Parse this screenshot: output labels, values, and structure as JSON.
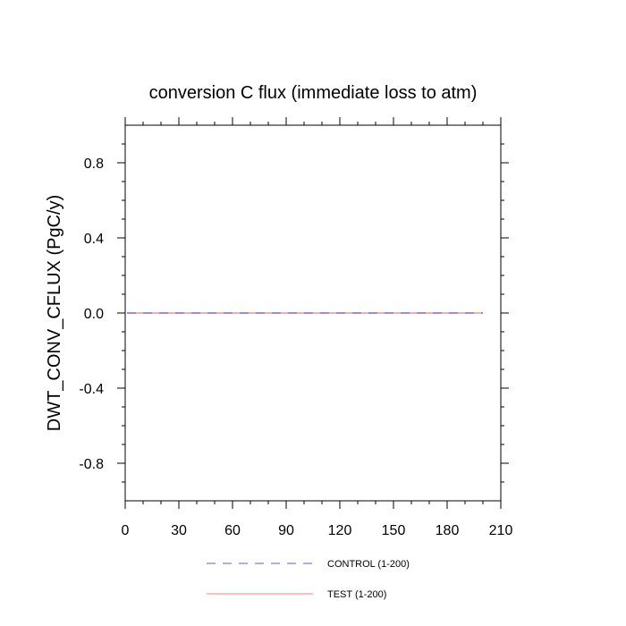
{
  "chart_data": {
    "type": "line",
    "title": "conversion C flux (immediate loss to atm)",
    "ylabel": "DWT_CONV_CFLUX  (PgC/y)",
    "xlabel": "",
    "xlim": [
      0,
      210
    ],
    "ylim": [
      -1.0,
      1.0
    ],
    "x_ticks": [
      0,
      30,
      60,
      90,
      120,
      150,
      180,
      210
    ],
    "x_tick_labels": [
      "0",
      "30",
      "60",
      "90",
      "120",
      "150",
      "180",
      "210"
    ],
    "y_ticks": [
      -0.8,
      -0.4,
      0.0,
      0.4,
      0.8
    ],
    "y_tick_labels": [
      "-0.8",
      "-0.4",
      "0.0",
      "0.4",
      "0.8"
    ],
    "grid": false,
    "legend_position": "bottom",
    "series": [
      {
        "name": "CONTROL (1-200)",
        "color": "#6a5acd",
        "style": "dashed",
        "x": [
          1,
          200
        ],
        "y": [
          0.0,
          0.0
        ]
      },
      {
        "name": "TEST (1-200)",
        "color": "#f08080",
        "style": "solid",
        "x": [
          1,
          200
        ],
        "y": [
          0.0,
          0.0
        ]
      }
    ]
  }
}
